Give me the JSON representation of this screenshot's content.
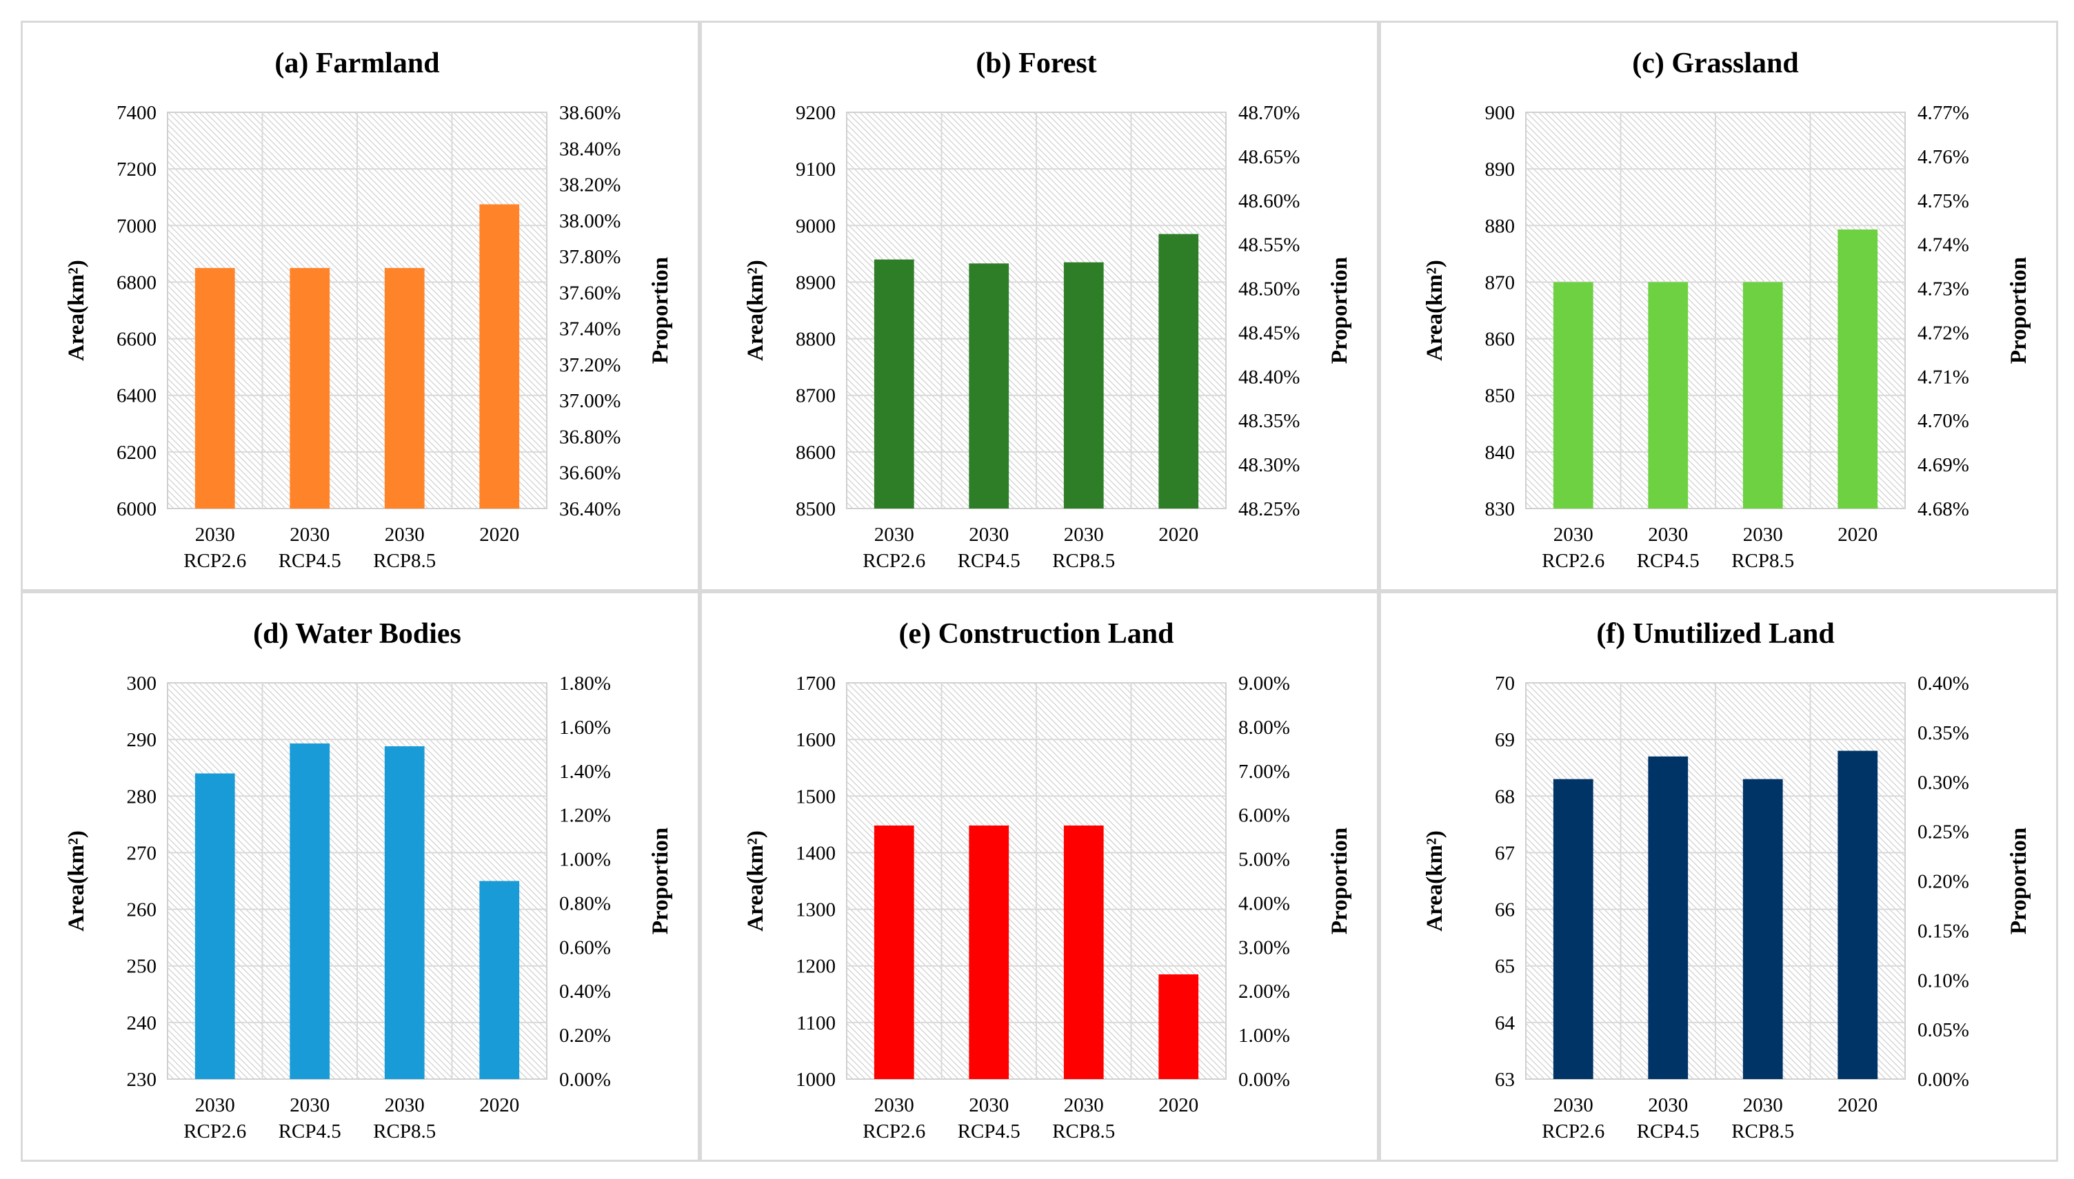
{
  "chart_data": [
    {
      "id": "a",
      "type": "bar",
      "title": "(a) Farmland",
      "categories": [
        [
          "2030",
          "RCP2.6"
        ],
        [
          "2030",
          "RCP4.5"
        ],
        [
          "2030",
          "RCP8.5"
        ],
        [
          "2020",
          ""
        ]
      ],
      "values": [
        6850,
        6850,
        6850,
        7075
      ],
      "ylabel": "Area(km²)",
      "y2label": "Proportion",
      "ylim": [
        6000,
        7400
      ],
      "yticks": [
        "6000",
        "6200",
        "6400",
        "6600",
        "6800",
        "7000",
        "7200",
        "7400"
      ],
      "y2ticks": [
        "36.40%",
        "36.60%",
        "36.80%",
        "37.00%",
        "37.20%",
        "37.40%",
        "37.60%",
        "37.80%",
        "38.00%",
        "38.20%",
        "38.40%",
        "38.60%"
      ],
      "color": "#FF8328"
    },
    {
      "id": "b",
      "type": "bar",
      "title": "(b) Forest",
      "categories": [
        [
          "2030",
          "RCP2.6"
        ],
        [
          "2030",
          "RCP4.5"
        ],
        [
          "2030",
          "RCP8.5"
        ],
        [
          "2020",
          ""
        ]
      ],
      "values": [
        8940,
        8933,
        8935,
        8985
      ],
      "ylabel": "Area(km²)",
      "y2label": "Proportion",
      "ylim": [
        8500,
        9200
      ],
      "yticks": [
        "8500",
        "8600",
        "8700",
        "8800",
        "8900",
        "9000",
        "9100",
        "9200"
      ],
      "y2ticks": [
        "48.25%",
        "48.30%",
        "48.35%",
        "48.40%",
        "48.45%",
        "48.50%",
        "48.55%",
        "48.60%",
        "48.65%",
        "48.70%"
      ],
      "color": "#2E7D27"
    },
    {
      "id": "c",
      "type": "bar",
      "title": "(c) Grassland",
      "categories": [
        [
          "2030",
          "RCP2.6"
        ],
        [
          "2030",
          "RCP4.5"
        ],
        [
          "2030",
          "RCP8.5"
        ],
        [
          "2020",
          ""
        ]
      ],
      "values": [
        870,
        870,
        870,
        879.3
      ],
      "ylabel": "Area(km²)",
      "y2label": "Proportion",
      "ylim": [
        830,
        900
      ],
      "yticks": [
        "830",
        "840",
        "850",
        "860",
        "870",
        "880",
        "890",
        "900"
      ],
      "y2ticks": [
        "4.68%",
        "4.69%",
        "4.70%",
        "4.71%",
        "4.72%",
        "4.73%",
        "4.74%",
        "4.75%",
        "4.76%",
        "4.77%"
      ],
      "color": "#6DD142"
    },
    {
      "id": "d",
      "type": "bar",
      "title": "(d) Water Bodies",
      "categories": [
        [
          "2030",
          "RCP2.6"
        ],
        [
          "2030",
          "RCP4.5"
        ],
        [
          "2030",
          "RCP8.5"
        ],
        [
          "2020",
          ""
        ]
      ],
      "values": [
        284,
        289.3,
        288.8,
        265
      ],
      "ylabel": "Area(km²)",
      "y2label": "Proportion",
      "ylim": [
        230,
        300
      ],
      "yticks": [
        "230",
        "240",
        "250",
        "260",
        "270",
        "280",
        "290",
        "300"
      ],
      "y2ticks": [
        "0.00%",
        "0.20%",
        "0.40%",
        "0.60%",
        "0.80%",
        "1.00%",
        "1.20%",
        "1.40%",
        "1.60%",
        "1.80%"
      ],
      "color": "#199BD7"
    },
    {
      "id": "e",
      "type": "bar",
      "title": "(e) Construction Land",
      "categories": [
        [
          "2030",
          "RCP2.6"
        ],
        [
          "2030",
          "RCP4.5"
        ],
        [
          "2030",
          "RCP8.5"
        ],
        [
          "2020",
          ""
        ]
      ],
      "values": [
        1448,
        1448,
        1448,
        1185
      ],
      "ylabel": "Area(km²)",
      "y2label": "Proportion",
      "ylim": [
        1000,
        1700
      ],
      "yticks": [
        "1000",
        "1100",
        "1200",
        "1300",
        "1400",
        "1500",
        "1600",
        "1700"
      ],
      "y2ticks": [
        "0.00%",
        "1.00%",
        "2.00%",
        "3.00%",
        "4.00%",
        "5.00%",
        "6.00%",
        "7.00%",
        "8.00%",
        "9.00%"
      ],
      "color": "#FF0000"
    },
    {
      "id": "f",
      "type": "bar",
      "title": "(f) Unutilized Land",
      "categories": [
        [
          "2030",
          "RCP2.6"
        ],
        [
          "2030",
          "RCP4.5"
        ],
        [
          "2030",
          "RCP8.5"
        ],
        [
          "2020",
          ""
        ]
      ],
      "values": [
        68.3,
        68.7,
        68.3,
        68.8
      ],
      "ylabel": "Area(km²)",
      "y2label": "Proportion",
      "ylim": [
        63,
        70
      ],
      "yticks": [
        "63",
        "64",
        "65",
        "66",
        "67",
        "68",
        "69",
        "70"
      ],
      "y2ticks": [
        "0.00%",
        "0.05%",
        "0.10%",
        "0.15%",
        "0.20%",
        "0.25%",
        "0.30%",
        "0.35%",
        "0.40%"
      ],
      "color": "#003366"
    }
  ]
}
